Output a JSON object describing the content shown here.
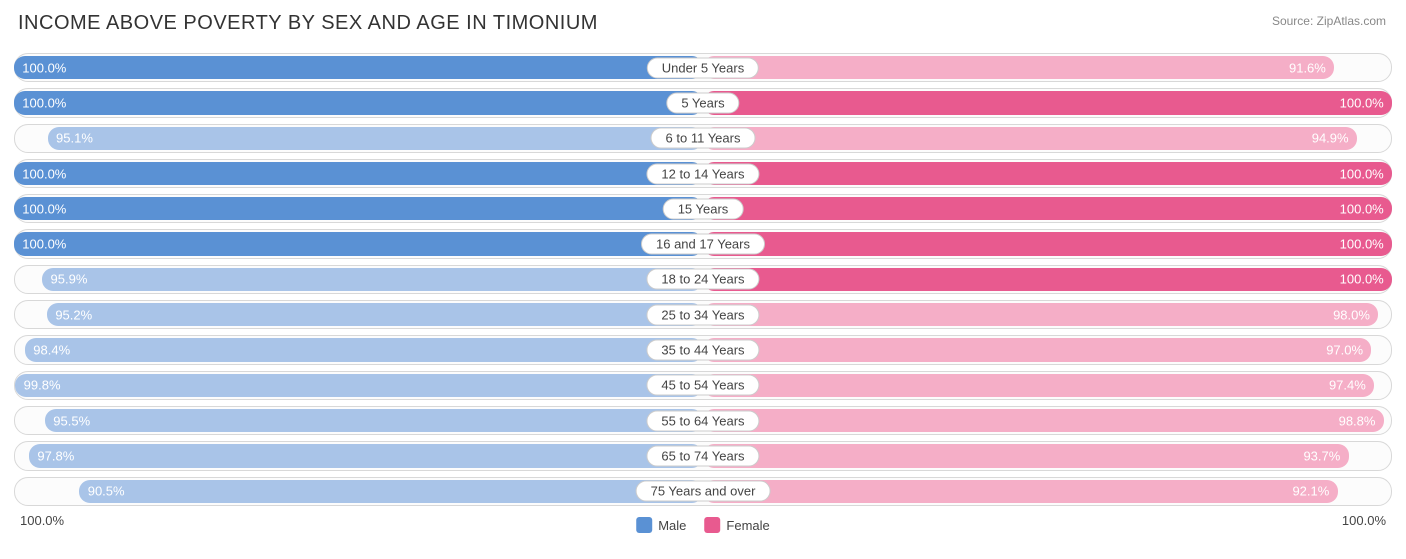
{
  "chart": {
    "type": "diverging-bar",
    "title": "INCOME ABOVE POVERTY BY SEX AND AGE IN TIMONIUM",
    "source": "Source: ZipAtlas.com",
    "title_fontsize": 20,
    "title_color": "#333333",
    "source_color": "#888888",
    "background_color": "#ffffff",
    "row_border_color": "#d8d8d8",
    "row_bg_color": "#fcfcfc",
    "label_border_color": "#cccccc",
    "label_text_color": "#444444",
    "bar_text_color": "#ffffff",
    "label_fontsize": 13,
    "axis_min_label": "100.0%",
    "axis_max_label": "100.0%",
    "axis_range": [
      0,
      100
    ],
    "legend": [
      {
        "label": "Male",
        "color": "#5a91d4"
      },
      {
        "label": "Female",
        "color": "#e85a8f"
      }
    ],
    "series": {
      "male": {
        "color_full": "#5a91d4",
        "color_light": "#a9c4e8"
      },
      "female": {
        "color_full": "#e85a8f",
        "color_light": "#f5aec7"
      }
    },
    "rows": [
      {
        "category": "Under 5 Years",
        "male": 100.0,
        "female": 91.6
      },
      {
        "category": "5 Years",
        "male": 100.0,
        "female": 100.0
      },
      {
        "category": "6 to 11 Years",
        "male": 95.1,
        "female": 94.9
      },
      {
        "category": "12 to 14 Years",
        "male": 100.0,
        "female": 100.0
      },
      {
        "category": "15 Years",
        "male": 100.0,
        "female": 100.0
      },
      {
        "category": "16 and 17 Years",
        "male": 100.0,
        "female": 100.0
      },
      {
        "category": "18 to 24 Years",
        "male": 95.9,
        "female": 100.0
      },
      {
        "category": "25 to 34 Years",
        "male": 95.2,
        "female": 98.0
      },
      {
        "category": "35 to 44 Years",
        "male": 98.4,
        "female": 97.0
      },
      {
        "category": "45 to 54 Years",
        "male": 99.8,
        "female": 97.4
      },
      {
        "category": "55 to 64 Years",
        "male": 95.5,
        "female": 98.8
      },
      {
        "category": "65 to 74 Years",
        "male": 97.8,
        "female": 93.7
      },
      {
        "category": "75 Years and over",
        "male": 90.5,
        "female": 92.1
      }
    ]
  }
}
